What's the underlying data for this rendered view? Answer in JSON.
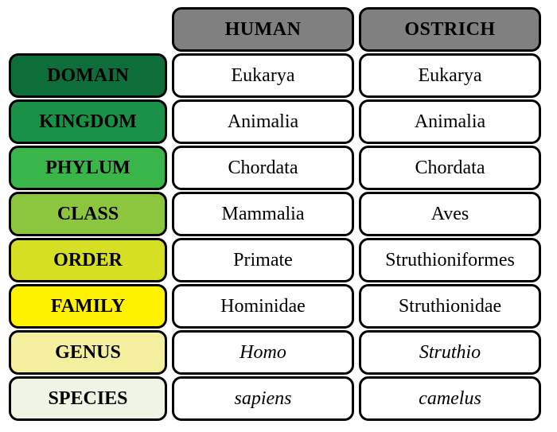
{
  "taxonomy_table": {
    "type": "table",
    "column_headers": [
      "HUMAN",
      "OSTRICH"
    ],
    "column_header_bg": "#808080",
    "taxonomic_ranks": [
      {
        "label": "DOMAIN",
        "bg_color": "#0e6e3a",
        "text_color": "#000000"
      },
      {
        "label": "KINGDOM",
        "bg_color": "#1a9147",
        "text_color": "#000000"
      },
      {
        "label": "PHYLUM",
        "bg_color": "#3ab54a",
        "text_color": "#000000"
      },
      {
        "label": "CLASS",
        "bg_color": "#8bc63e",
        "text_color": "#000000"
      },
      {
        "label": "ORDER",
        "bg_color": "#d6df24",
        "text_color": "#000000"
      },
      {
        "label": "FAMILY",
        "bg_color": "#fff200",
        "text_color": "#000000"
      },
      {
        "label": "GENUS",
        "bg_color": "#f4ee9f",
        "text_color": "#000000"
      },
      {
        "label": "SPECIES",
        "bg_color": "#eef5e5",
        "text_color": "#000000"
      }
    ],
    "data": {
      "human": [
        "Eukarya",
        "Animalia",
        "Chordata",
        "Mammalia",
        "Primate",
        "Hominidae",
        "Homo",
        "sapiens"
      ],
      "ostrich": [
        "Eukarya",
        "Animalia",
        "Chordata",
        "Aves",
        "Struthioniformes",
        "Struthionidae",
        "Struthio",
        "camelus"
      ]
    },
    "italic_rows": [
      6,
      7
    ],
    "cell_bg": "#ffffff",
    "border_color": "#000000",
    "border_width": 3,
    "border_radius": 12,
    "font_family": "Times New Roman",
    "header_fontsize": 24,
    "cell_fontsize": 24
  }
}
